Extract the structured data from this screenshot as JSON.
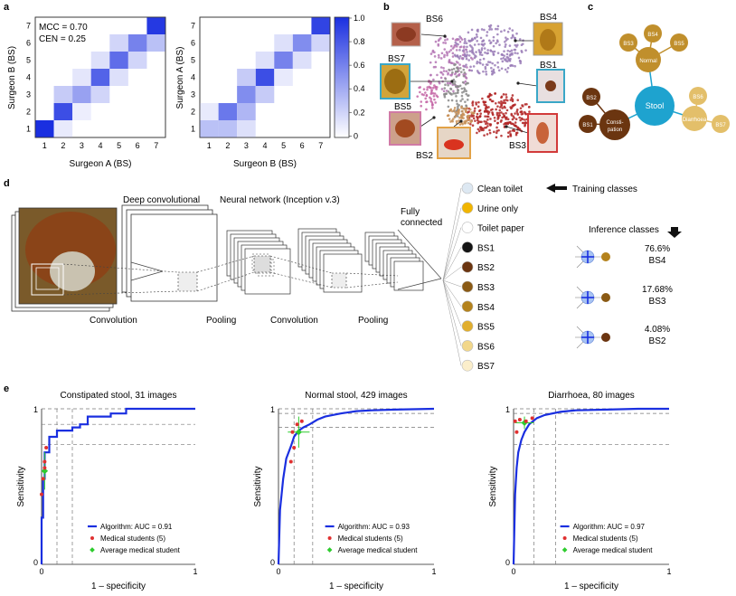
{
  "panel_labels": {
    "a": "a",
    "b": "b",
    "c": "c",
    "d": "d",
    "e": "e"
  },
  "panel_a": {
    "left": {
      "xlabel": "Surgeon A (BS)",
      "ylabel": "Surgeon B (BS)",
      "mcc": "MCC = 0.70",
      "cen": "CEN = 0.25",
      "ticks": [
        "1",
        "2",
        "3",
        "4",
        "5",
        "6",
        "7"
      ],
      "cells": [
        [
          1,
          1,
          1.0
        ],
        [
          2,
          2,
          0.85
        ],
        [
          2,
          3,
          0.25
        ],
        [
          3,
          3,
          0.45
        ],
        [
          3,
          4,
          0.12
        ],
        [
          4,
          3,
          0.2
        ],
        [
          4,
          4,
          0.75
        ],
        [
          4,
          5,
          0.15
        ],
        [
          5,
          4,
          0.15
        ],
        [
          5,
          5,
          0.7
        ],
        [
          5,
          6,
          0.2
        ],
        [
          6,
          5,
          0.2
        ],
        [
          6,
          6,
          0.6
        ],
        [
          7,
          6,
          0.3
        ],
        [
          7,
          7,
          0.95
        ],
        [
          3,
          2,
          0.08
        ],
        [
          2,
          1,
          0.1
        ]
      ]
    },
    "right": {
      "xlabel": "Surgeon B (BS)",
      "ylabel": "Surgeon A (BS)",
      "ticks": [
        "1",
        "2",
        "3",
        "4",
        "5",
        "6",
        "7"
      ],
      "cells": [
        [
          1,
          1,
          0.3
        ],
        [
          2,
          1,
          0.3
        ],
        [
          3,
          1,
          0.15
        ],
        [
          2,
          2,
          0.65
        ],
        [
          3,
          2,
          0.35
        ],
        [
          3,
          3,
          0.55
        ],
        [
          4,
          3,
          0.25
        ],
        [
          4,
          4,
          0.85
        ],
        [
          3,
          4,
          0.25
        ],
        [
          4,
          5,
          0.15
        ],
        [
          5,
          5,
          0.6
        ],
        [
          6,
          5,
          0.15
        ],
        [
          5,
          6,
          0.15
        ],
        [
          6,
          6,
          0.55
        ],
        [
          7,
          6,
          0.2
        ],
        [
          7,
          7,
          0.9
        ],
        [
          5,
          4,
          0.1
        ],
        [
          1,
          2,
          0.1
        ]
      ]
    },
    "colorbar_ticks": [
      "1.0",
      "0.8",
      "0.6",
      "0.4",
      "0.2",
      "0"
    ]
  },
  "panel_b": {
    "labels": [
      "BS6",
      "BS4",
      "BS7",
      "BS1",
      "BS5",
      "BS2",
      "BS3"
    ]
  },
  "panel_c": {
    "center": "Stool",
    "groups": [
      {
        "name": "Normal",
        "children": [
          "BS3",
          "BS4",
          "BS5"
        ],
        "color": "#c08f2c"
      },
      {
        "name": "Consti-\npation",
        "children": [
          "BS2",
          "BS1"
        ],
        "color": "#6b3510"
      },
      {
        "name": "Diarrhoea",
        "children": [
          "BS6",
          "BS7"
        ],
        "color": "#e3bf6a"
      }
    ],
    "colors": {
      "center": "#1ea3cf",
      "normal": "#c08f2c",
      "consti": "#6b3510",
      "diarrhoea": "#e3bf6a"
    }
  },
  "panel_d": {
    "deep_conv": "Deep convolutional",
    "nn": "Neural network (Inception v.3)",
    "fully": "Fully",
    "connected": "connected",
    "convolution1": "Convolution",
    "pooling1": "Pooling",
    "convolution2": "Convolution",
    "pooling2": "Pooling",
    "classes": [
      {
        "label": "Clean toilet",
        "color": "#dde8f2"
      },
      {
        "label": "Urine only",
        "color": "#f1b500"
      },
      {
        "label": "Toilet paper",
        "color": "#ffffff"
      },
      {
        "label": "BS1",
        "color": "#141414"
      },
      {
        "label": "BS2",
        "color": "#6b3510"
      },
      {
        "label": "BS3",
        "color": "#8a5a14"
      },
      {
        "label": "BS4",
        "color": "#b4821c"
      },
      {
        "label": "BS5",
        "color": "#e1ae2e"
      },
      {
        "label": "BS6",
        "color": "#f2d78a"
      },
      {
        "label": "BS7",
        "color": "#fbeecb"
      }
    ],
    "training_classes": "Training classes",
    "inference_title": "Inference classes",
    "inference": [
      {
        "pct": "76.6%",
        "cls": "BS4",
        "color": "#b4821c"
      },
      {
        "pct": "17.68%",
        "cls": "BS3",
        "color": "#8a5a14"
      },
      {
        "pct": "4.08%",
        "cls": "BS2",
        "color": "#6b3510"
      }
    ]
  },
  "chart_data": [
    {
      "type": "line",
      "title": "Constipated stool, 31 images",
      "xlabel": "1 – specificity",
      "ylabel": "Sensitivity",
      "xlim": [
        0,
        1
      ],
      "ylim": [
        0,
        1
      ],
      "x_ticks": [
        "0",
        "1"
      ],
      "y_ticks": [
        "0",
        "1"
      ],
      "series": [
        {
          "name": "Algorithm: AUC = 0.91",
          "x": [
            0,
            0,
            0.01,
            0.01,
            0.02,
            0.02,
            0.05,
            0.05,
            0.1,
            0.1,
            0.2,
            0.2,
            0.25,
            0.25,
            0.3,
            0.3,
            0.45,
            0.45,
            0.55,
            0.55,
            1.0
          ],
          "y": [
            0,
            0.3,
            0.3,
            0.55,
            0.55,
            0.72,
            0.72,
            0.82,
            0.82,
            0.86,
            0.86,
            0.88,
            0.88,
            0.9,
            0.9,
            0.95,
            0.95,
            0.97,
            0.97,
            1.0,
            1.0
          ]
        }
      ],
      "students": {
        "name": "Medical students (5)",
        "x": [
          0.01,
          0.02,
          0.0,
          0.03,
          0.02
        ],
        "y": [
          0.55,
          0.62,
          0.45,
          0.75,
          0.66
        ]
      },
      "avg": {
        "name": "Average medical student",
        "x": 0.02,
        "y": 0.6,
        "xerr": 0.02,
        "yerr": 0.12
      },
      "refs": {
        "v": [
          0.1,
          0.2
        ],
        "h": [
          0.9,
          0.77
        ]
      }
    },
    {
      "type": "line",
      "title": "Normal stool, 429 images",
      "xlabel": "1 – specificity",
      "ylabel": "Sensitivity",
      "xlim": [
        0,
        1
      ],
      "ylim": [
        0,
        1
      ],
      "x_ticks": [
        "0",
        "1"
      ],
      "y_ticks": [
        "0",
        "1"
      ],
      "series": [
        {
          "name": "Algorithm: AUC = 0.93",
          "x": [
            0,
            0.01,
            0.03,
            0.05,
            0.08,
            0.1,
            0.13,
            0.16,
            0.2,
            0.25,
            0.3,
            0.4,
            0.5,
            0.6,
            0.75,
            1.0
          ],
          "y": [
            0,
            0.35,
            0.55,
            0.68,
            0.76,
            0.82,
            0.86,
            0.88,
            0.9,
            0.93,
            0.95,
            0.97,
            0.985,
            0.99,
            0.995,
            1.0
          ]
        }
      ],
      "students": {
        "name": "Medical students (5)",
        "x": [
          0.08,
          0.1,
          0.12,
          0.15,
          0.09
        ],
        "y": [
          0.66,
          0.75,
          0.9,
          0.92,
          0.85
        ]
      },
      "avg": {
        "name": "Average medical student",
        "x": 0.13,
        "y": 0.85,
        "xerr": 0.07,
        "yerr": 0.1
      },
      "refs": {
        "v": [
          0.1,
          0.22
        ],
        "h": [
          0.97,
          0.88
        ]
      }
    },
    {
      "type": "line",
      "title": "Diarrhoea, 80 images",
      "xlabel": "1 – specificity",
      "ylabel": "Sensitivity",
      "xlim": [
        0,
        1
      ],
      "ylim": [
        0,
        1
      ],
      "x_ticks": [
        "0",
        "1"
      ],
      "y_ticks": [
        "0",
        "1"
      ],
      "series": [
        {
          "name": "Algorithm: AUC = 0.97",
          "x": [
            0,
            0.01,
            0.02,
            0.03,
            0.05,
            0.07,
            0.1,
            0.15,
            0.2,
            0.3,
            0.4,
            0.6,
            0.8,
            1.0
          ],
          "y": [
            0,
            0.45,
            0.62,
            0.72,
            0.8,
            0.85,
            0.9,
            0.94,
            0.96,
            0.98,
            0.99,
            0.995,
            1.0,
            1.0
          ]
        }
      ],
      "students": {
        "name": "Medical students (5)",
        "x": [
          0.01,
          0.02,
          0.04,
          0.08,
          0.12
        ],
        "y": [
          0.92,
          0.85,
          0.93,
          0.92,
          0.94
        ]
      },
      "avg": {
        "name": "Average medical student",
        "x": 0.07,
        "y": 0.91,
        "xerr": 0.06,
        "yerr": 0.04
      },
      "refs": {
        "v": [
          0.13,
          0.27
        ],
        "h": [
          0.97,
          0.77
        ]
      }
    }
  ]
}
